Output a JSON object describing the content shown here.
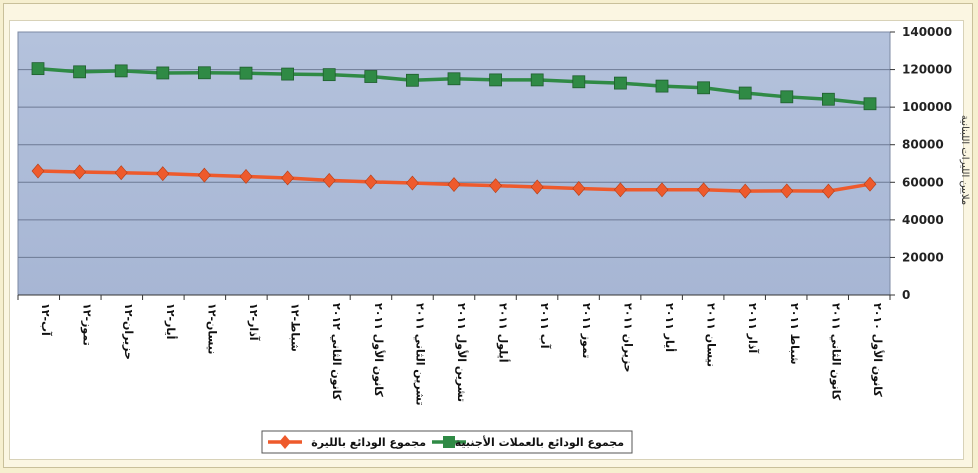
{
  "chart_data": {
    "type": "line",
    "ylabel": "ملايين الليرات اللبنانية",
    "ylim": [
      0,
      140000
    ],
    "yticks": [
      0,
      20000,
      40000,
      60000,
      80000,
      100000,
      120000,
      140000
    ],
    "ytick_labels": [
      "0",
      "20000",
      "40000",
      "60000",
      "80000",
      "100000",
      "120000",
      "140000"
    ],
    "categories": [
      "آب-١٢",
      "تموز-١٢",
      "حزيران-١٢",
      "أيار-١٢",
      "نيسان-١٢",
      "آذار-١٢",
      "شباط-١٢",
      "كانون الثاني ٢٠١٢",
      "كانون الأول ٢٠١١",
      "تشرين الثاني ٢٠١١",
      "تشرين الأول ٢٠١١",
      "أيلول ٢٠١١",
      "آب ٢٠١١",
      "تموز ٢٠١١",
      "حزيران ٢٠١١",
      "أيار ٢٠١١",
      "نيسان ٢٠١١",
      "آذار ٢٠١١",
      "شباط ٢٠١١",
      "كانون الثاني ٢٠١١",
      "كانون الأول ٢٠١٠"
    ],
    "series": [
      {
        "name": "مجموع الودائع بالعملات الأجنبية",
        "color": "#2f8a45",
        "marker": "square",
        "values": [
          120500,
          118800,
          119300,
          118200,
          118300,
          118100,
          117600,
          117300,
          116300,
          114300,
          115100,
          114500,
          114500,
          113500,
          112800,
          111200,
          110300,
          107500,
          105500,
          104200,
          101800
        ]
      },
      {
        "name": "مجموع الودائع بالليرة",
        "color": "#ee5a2c",
        "marker": "diamond",
        "values": [
          66000,
          65500,
          65100,
          64600,
          63800,
          63100,
          62300,
          61000,
          60200,
          59600,
          58800,
          58200,
          57500,
          56700,
          56000,
          56000,
          56000,
          55300,
          55400,
          55300,
          59000
        ]
      }
    ],
    "grid": true,
    "legend": "bottom"
  }
}
